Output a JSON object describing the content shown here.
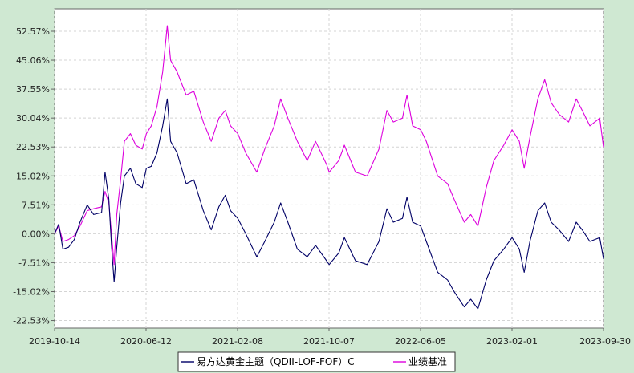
{
  "chart_data": {
    "type": "line",
    "title": "",
    "xlabel": "",
    "ylabel": "",
    "x_tick_labels": [
      "2019-10-14",
      "2020-06-12",
      "2021-02-08",
      "2021-10-07",
      "2022-06-05",
      "2023-02-01",
      "2023-09-30"
    ],
    "x_range": [
      "2019-10-14",
      "2023-09-30"
    ],
    "y_tick_labels": [
      "52.57%",
      "45.06%",
      "37.55%",
      "30.04%",
      "22.53%",
      "15.02%",
      "7.51%",
      "0.00%",
      "-7.51%",
      "-15.02%",
      "-22.53%"
    ],
    "y_ticks": [
      52.57,
      45.06,
      37.55,
      30.04,
      22.53,
      15.02,
      7.51,
      0.0,
      -7.51,
      -15.02,
      -22.53
    ],
    "ylim": [
      -24.5,
      58.4
    ],
    "grid": true,
    "legend_position": "bottom",
    "series": [
      {
        "name": "易方达黄金主题（QDII-LOF-FOF）C",
        "color": "#000066",
        "points": [
          [
            "2019-10-14",
            0.0
          ],
          [
            "2019-10-25",
            2.5
          ],
          [
            "2019-11-05",
            -4.0
          ],
          [
            "2019-11-20",
            -3.5
          ],
          [
            "2019-12-05",
            -1.5
          ],
          [
            "2019-12-20",
            3.0
          ],
          [
            "2020-01-08",
            7.5
          ],
          [
            "2020-01-25",
            5.0
          ],
          [
            "2020-02-15",
            5.5
          ],
          [
            "2020-02-24",
            16.0
          ],
          [
            "2020-03-05",
            9.0
          ],
          [
            "2020-03-12",
            -3.0
          ],
          [
            "2020-03-19",
            -12.5
          ],
          [
            "2020-03-26",
            -3.5
          ],
          [
            "2020-04-05",
            8.0
          ],
          [
            "2020-04-15",
            15.0
          ],
          [
            "2020-05-01",
            17.0
          ],
          [
            "2020-05-15",
            13.0
          ],
          [
            "2020-06-01",
            12.0
          ],
          [
            "2020-06-12",
            17.0
          ],
          [
            "2020-06-25",
            17.5
          ],
          [
            "2020-07-10",
            21.0
          ],
          [
            "2020-07-25",
            28.0
          ],
          [
            "2020-08-06",
            35.0
          ],
          [
            "2020-08-15",
            24.0
          ],
          [
            "2020-09-01",
            21.0
          ],
          [
            "2020-09-25",
            13.0
          ],
          [
            "2020-10-15",
            14.0
          ],
          [
            "2020-11-09",
            6.0
          ],
          [
            "2020-11-30",
            1.0
          ],
          [
            "2020-12-20",
            7.0
          ],
          [
            "2021-01-06",
            10.0
          ],
          [
            "2021-01-20",
            6.0
          ],
          [
            "2021-02-08",
            4.0
          ],
          [
            "2021-03-01",
            0.0
          ],
          [
            "2021-03-30",
            -6.0
          ],
          [
            "2021-04-20",
            -2.0
          ],
          [
            "2021-05-15",
            3.0
          ],
          [
            "2021-06-01",
            8.0
          ],
          [
            "2021-06-20",
            3.0
          ],
          [
            "2021-07-15",
            -4.0
          ],
          [
            "2021-08-10",
            -6.0
          ],
          [
            "2021-09-01",
            -3.0
          ],
          [
            "2021-09-30",
            -7.0
          ],
          [
            "2021-10-07",
            -8.0
          ],
          [
            "2021-11-01",
            -5.0
          ],
          [
            "2021-11-16",
            -1.0
          ],
          [
            "2021-12-15",
            -7.0
          ],
          [
            "2022-01-15",
            -8.0
          ],
          [
            "2022-02-15",
            -2.0
          ],
          [
            "2022-03-08",
            6.5
          ],
          [
            "2022-03-25",
            3.0
          ],
          [
            "2022-04-18",
            4.0
          ],
          [
            "2022-04-30",
            9.5
          ],
          [
            "2022-05-15",
            3.0
          ],
          [
            "2022-06-05",
            2.0
          ],
          [
            "2022-06-20",
            -2.0
          ],
          [
            "2022-07-20",
            -10.0
          ],
          [
            "2022-08-15",
            -12.0
          ],
          [
            "2022-09-01",
            -15.0
          ],
          [
            "2022-09-28",
            -19.0
          ],
          [
            "2022-10-15",
            -17.0
          ],
          [
            "2022-11-03",
            -19.5
          ],
          [
            "2022-11-25",
            -12.0
          ],
          [
            "2022-12-15",
            -7.0
          ],
          [
            "2023-01-10",
            -4.0
          ],
          [
            "2023-02-01",
            -1.0
          ],
          [
            "2023-02-20",
            -4.0
          ],
          [
            "2023-03-05",
            -10.0
          ],
          [
            "2023-03-20",
            -2.0
          ],
          [
            "2023-04-10",
            6.0
          ],
          [
            "2023-04-28",
            8.0
          ],
          [
            "2023-05-15",
            3.0
          ],
          [
            "2023-06-05",
            1.0
          ],
          [
            "2023-06-30",
            -2.0
          ],
          [
            "2023-07-20",
            3.0
          ],
          [
            "2023-08-05",
            1.0
          ],
          [
            "2023-08-25",
            -2.0
          ],
          [
            "2023-09-20",
            -1.0
          ],
          [
            "2023-09-30",
            -6.5
          ]
        ]
      },
      {
        "name": "业绩基准",
        "color": "#dd00dd",
        "points": [
          [
            "2019-10-14",
            0.0
          ],
          [
            "2019-10-25",
            2.0
          ],
          [
            "2019-11-05",
            -2.0
          ],
          [
            "2019-11-20",
            -1.5
          ],
          [
            "2019-12-05",
            -0.5
          ],
          [
            "2019-12-20",
            2.0
          ],
          [
            "2020-01-08",
            6.0
          ],
          [
            "2020-01-25",
            6.5
          ],
          [
            "2020-02-15",
            7.0
          ],
          [
            "2020-02-24",
            11.0
          ],
          [
            "2020-03-05",
            8.0
          ],
          [
            "2020-03-12",
            0.0
          ],
          [
            "2020-03-19",
            -8.0
          ],
          [
            "2020-03-26",
            5.0
          ],
          [
            "2020-04-05",
            14.0
          ],
          [
            "2020-04-15",
            24.0
          ],
          [
            "2020-05-01",
            26.0
          ],
          [
            "2020-05-15",
            23.0
          ],
          [
            "2020-06-01",
            22.0
          ],
          [
            "2020-06-12",
            26.0
          ],
          [
            "2020-06-25",
            28.0
          ],
          [
            "2020-07-10",
            33.0
          ],
          [
            "2020-07-25",
            42.0
          ],
          [
            "2020-08-06",
            54.0
          ],
          [
            "2020-08-15",
            45.0
          ],
          [
            "2020-09-01",
            42.0
          ],
          [
            "2020-09-25",
            36.0
          ],
          [
            "2020-10-15",
            37.0
          ],
          [
            "2020-11-09",
            29.0
          ],
          [
            "2020-11-30",
            24.0
          ],
          [
            "2020-12-20",
            30.0
          ],
          [
            "2021-01-06",
            32.0
          ],
          [
            "2021-01-20",
            28.0
          ],
          [
            "2021-02-08",
            26.0
          ],
          [
            "2021-03-01",
            21.0
          ],
          [
            "2021-03-30",
            16.0
          ],
          [
            "2021-04-20",
            22.0
          ],
          [
            "2021-05-15",
            28.0
          ],
          [
            "2021-06-01",
            35.0
          ],
          [
            "2021-06-20",
            30.0
          ],
          [
            "2021-07-15",
            24.0
          ],
          [
            "2021-08-10",
            19.0
          ],
          [
            "2021-09-01",
            24.0
          ],
          [
            "2021-09-30",
            18.0
          ],
          [
            "2021-10-07",
            16.0
          ],
          [
            "2021-11-01",
            19.0
          ],
          [
            "2021-11-16",
            23.0
          ],
          [
            "2021-12-15",
            16.0
          ],
          [
            "2022-01-15",
            15.0
          ],
          [
            "2022-02-15",
            22.0
          ],
          [
            "2022-03-08",
            32.0
          ],
          [
            "2022-03-25",
            29.0
          ],
          [
            "2022-04-18",
            30.0
          ],
          [
            "2022-04-30",
            36.0
          ],
          [
            "2022-05-15",
            28.0
          ],
          [
            "2022-06-05",
            27.0
          ],
          [
            "2022-06-20",
            24.0
          ],
          [
            "2022-07-20",
            15.0
          ],
          [
            "2022-08-15",
            13.0
          ],
          [
            "2022-09-01",
            9.0
          ],
          [
            "2022-09-28",
            3.0
          ],
          [
            "2022-10-15",
            5.0
          ],
          [
            "2022-11-03",
            2.0
          ],
          [
            "2022-11-25",
            12.0
          ],
          [
            "2022-12-15",
            19.0
          ],
          [
            "2023-01-10",
            23.0
          ],
          [
            "2023-02-01",
            27.0
          ],
          [
            "2023-02-20",
            24.0
          ],
          [
            "2023-03-05",
            17.0
          ],
          [
            "2023-03-20",
            25.0
          ],
          [
            "2023-04-10",
            35.0
          ],
          [
            "2023-04-28",
            40.0
          ],
          [
            "2023-05-15",
            34.0
          ],
          [
            "2023-06-05",
            31.0
          ],
          [
            "2023-06-30",
            29.0
          ],
          [
            "2023-07-20",
            35.0
          ],
          [
            "2023-08-05",
            32.0
          ],
          [
            "2023-08-25",
            28.0
          ],
          [
            "2023-09-20",
            30.0
          ],
          [
            "2023-09-30",
            22.5
          ]
        ]
      }
    ]
  }
}
